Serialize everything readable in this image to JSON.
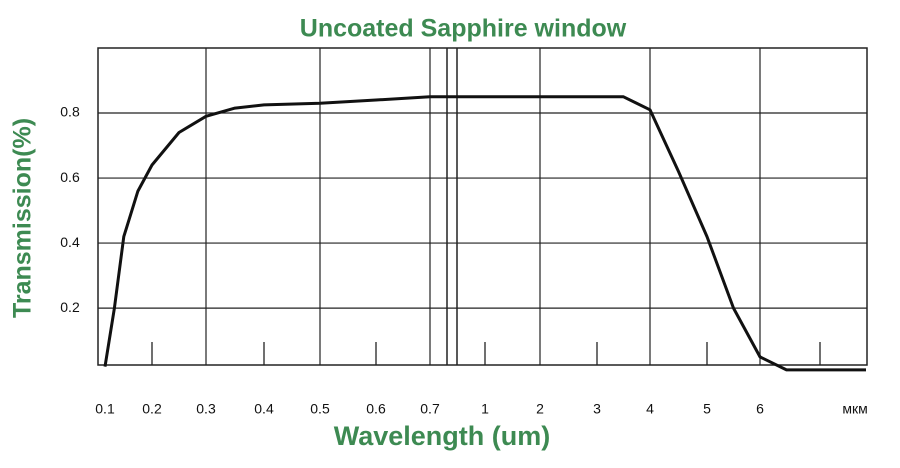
{
  "chart_data": {
    "type": "line",
    "title": "Uncoated Sapphire window",
    "x_label": "Wavelength (um)",
    "y_label": "Transmission(%)",
    "x_unit": "мкм",
    "x": [
      0.1,
      0.12,
      0.14,
      0.17,
      0.2,
      0.25,
      0.3,
      0.35,
      0.4,
      0.5,
      0.6,
      0.7,
      1,
      2,
      3,
      3.5,
      4,
      4.5,
      5,
      5.5,
      6,
      6.5,
      7,
      8
    ],
    "values": [
      0.02,
      0.2,
      0.42,
      0.56,
      0.64,
      0.74,
      0.79,
      0.815,
      0.825,
      0.83,
      0.84,
      0.85,
      0.85,
      0.85,
      0.85,
      0.85,
      0.81,
      0.62,
      0.42,
      0.2,
      0.05,
      0.01,
      0.01,
      0.01
    ],
    "color": "#111111",
    "xlim": [
      0.09,
      8.1
    ],
    "ylim": [
      0.025,
      1.0
    ],
    "xticks": [
      0.1,
      0.2,
      0.3,
      0.4,
      0.5,
      0.6,
      0.7,
      1,
      2,
      3,
      4,
      5,
      6
    ],
    "yticks": [
      0.2,
      0.4,
      0.6,
      0.8
    ],
    "grid": true
  }
}
